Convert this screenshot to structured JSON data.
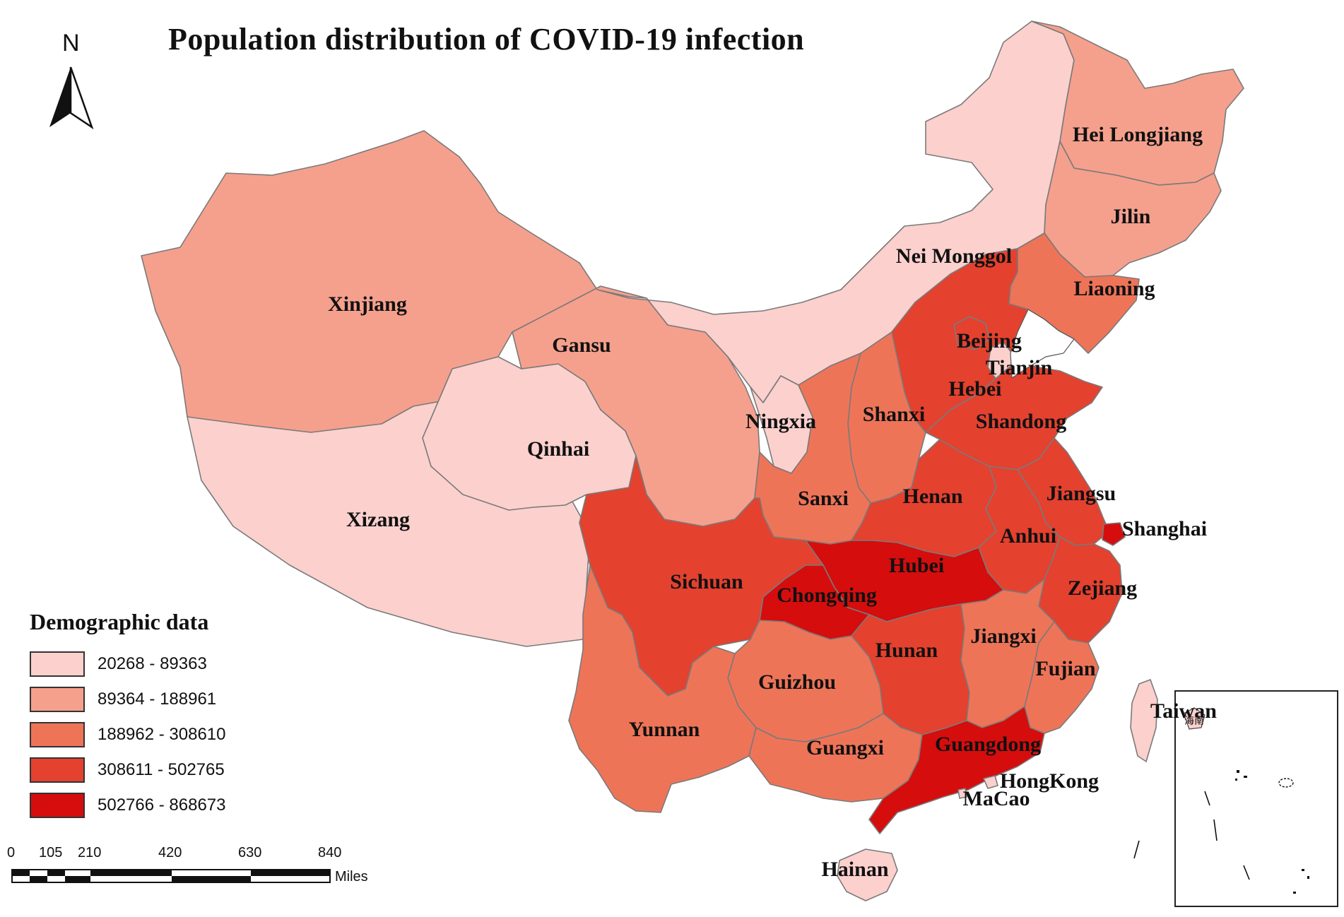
{
  "title": "Population distribution of COVID-19 infection",
  "north_arrow": {
    "label": "N"
  },
  "legend": {
    "title": "Demographic data",
    "classes": [
      {
        "range": "20268 - 89363",
        "color": "#fbd0cd"
      },
      {
        "range": "89364 - 188961",
        "color": "#f5a08d"
      },
      {
        "range": "188962 - 308610",
        "color": "#ee7458"
      },
      {
        "range": "308611 - 502765",
        "color": "#e4412f"
      },
      {
        "range": "502766 - 868673",
        "color": "#d50d0d"
      }
    ]
  },
  "scale_bar": {
    "ticks": [
      "0",
      "105",
      "210",
      "420",
      "630",
      "840"
    ],
    "unit": "Miles"
  },
  "regions": [
    {
      "id": "xinjiang",
      "label": "Xinjiang",
      "class": 1
    },
    {
      "id": "xizang",
      "label": "Xizang",
      "class": 0
    },
    {
      "id": "qinhai",
      "label": "Qinhai",
      "class": 0
    },
    {
      "id": "gansu",
      "label": "Gansu",
      "class": 1
    },
    {
      "id": "neimonggol",
      "label": "Nei Monggol",
      "class": 0
    },
    {
      "id": "heilongjiang",
      "label": "Hei Longjiang",
      "class": 1
    },
    {
      "id": "jilin",
      "label": "Jilin",
      "class": 1
    },
    {
      "id": "liaoning",
      "label": "Liaoning",
      "class": 2
    },
    {
      "id": "beijing",
      "label": "Beijing",
      "class": 3
    },
    {
      "id": "tianjin",
      "label": "Tianjin",
      "class": 0
    },
    {
      "id": "hebei",
      "label": "Hebei",
      "class": 3
    },
    {
      "id": "shanxi",
      "label": "Shanxi",
      "class": 2
    },
    {
      "id": "ningxia",
      "label": "Ningxia",
      "class": 0
    },
    {
      "id": "shandong",
      "label": "Shandong",
      "class": 3
    },
    {
      "id": "sanxi",
      "label": "Sanxi",
      "class": 2
    },
    {
      "id": "henan",
      "label": "Henan",
      "class": 3
    },
    {
      "id": "jiangsu",
      "label": "Jiangsu",
      "class": 3
    },
    {
      "id": "anhui",
      "label": "Anhui",
      "class": 3
    },
    {
      "id": "shanghai",
      "label": "Shanghai",
      "class": 4
    },
    {
      "id": "hubei",
      "label": "Hubei",
      "class": 4
    },
    {
      "id": "sichuan",
      "label": "Sichuan",
      "class": 3
    },
    {
      "id": "chongqing",
      "label": "Chongqing",
      "class": 4
    },
    {
      "id": "zejiang",
      "label": "Zejiang",
      "class": 3
    },
    {
      "id": "hunan",
      "label": "Hunan",
      "class": 3
    },
    {
      "id": "jiangxi",
      "label": "Jiangxi",
      "class": 2
    },
    {
      "id": "fujian",
      "label": "Fujian",
      "class": 2
    },
    {
      "id": "guizhou",
      "label": "Guizhou",
      "class": 2
    },
    {
      "id": "yunnan",
      "label": "Yunnan",
      "class": 2
    },
    {
      "id": "guangxi",
      "label": "Guangxi",
      "class": 2
    },
    {
      "id": "guangdong",
      "label": "Guangdong",
      "class": 4
    },
    {
      "id": "hongkong",
      "label": "HongKong",
      "class": 0
    },
    {
      "id": "macao",
      "label": "MaCao",
      "class": 0
    },
    {
      "id": "hainan",
      "label": "Hainan",
      "class": 0
    },
    {
      "id": "taiwan",
      "label": "Taiwan",
      "class": 0
    }
  ],
  "inset": {
    "label": "海南"
  }
}
